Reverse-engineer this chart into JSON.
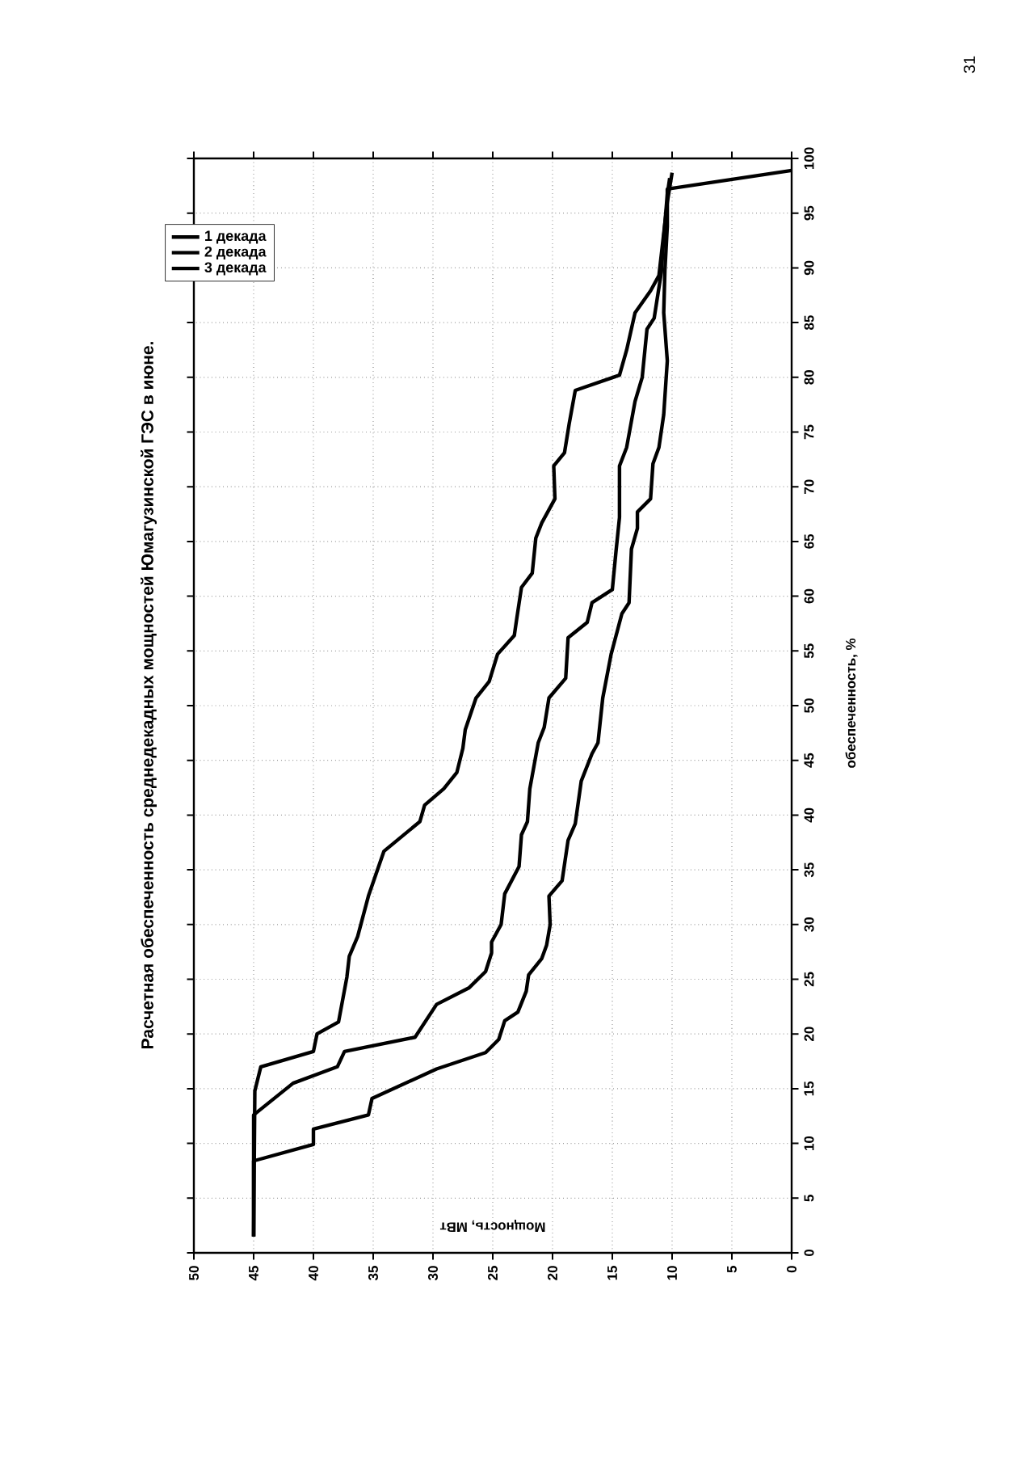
{
  "chart_data": {
    "type": "line",
    "title": "Расчетная обеспеченность среднедекадных мощностей Юмагузинской ГЭС в июне.",
    "xlabel": "Мощность, МВт",
    "ylabel": "обеспеченность, %",
    "annotations": [
      "31"
    ],
    "xlim": [
      50,
      0
    ],
    "ylim": [
      0,
      100
    ],
    "xticks": [
      0,
      5,
      10,
      15,
      20,
      25,
      30,
      35,
      40,
      45,
      50
    ],
    "yticks": [
      0,
      5,
      10,
      15,
      20,
      25,
      30,
      35,
      40,
      45,
      50,
      55,
      60,
      65,
      70,
      75,
      80,
      85,
      90,
      95,
      100
    ],
    "grid": true,
    "legend": "top left",
    "marker": "none",
    "line_style": "solid",
    "series": [
      {
        "name": "1 декада",
        "color": "#000000",
        "values": [
          1.5,
          14.8,
          17.0,
          18.4,
          20,
          21.1,
          25.2,
          27.1,
          28.9,
          32.6,
          36.7,
          39.4,
          40.9,
          42.4,
          43.9,
          46.1,
          47.8,
          50.7,
          52.2,
          54.7,
          56.4,
          57.9,
          60.8,
          62.1,
          65.3,
          66.7,
          68.9,
          71.9,
          73.1,
          75.8,
          78.8,
          80.2,
          82.5,
          85.9,
          87.9,
          89.3,
          96,
          98.7
        ],
        "x": [
          45,
          44.9,
          44.4,
          40,
          39.7,
          37.9,
          37.2,
          37,
          36.3,
          35.4,
          34.1,
          31.1,
          30.7,
          29.1,
          28,
          27.5,
          27.3,
          26.4,
          25.3,
          24.6,
          23.2,
          23,
          22.6,
          21.7,
          21.4,
          20.9,
          19.8,
          19.9,
          19,
          18.6,
          18.1,
          14.4,
          13.8,
          13.1,
          11.8,
          11.1,
          10.4,
          10
        ]
      },
      {
        "name": "2 декада",
        "color": "#000000",
        "values": [
          1.5,
          12.6,
          15.5,
          17,
          18.4,
          19.7,
          22.7,
          24.2,
          25.7,
          27.4,
          28.4,
          30,
          32.8,
          35.3,
          38.2,
          39.4,
          42.4,
          46.6,
          48,
          50.7,
          52.5,
          56.2,
          57.6,
          59.4,
          60.6,
          64,
          67.2,
          71.9,
          73.6,
          77.8,
          80,
          84.4,
          85.4,
          89.6,
          92.8,
          96.7,
          98.2
        ],
        "x": [
          45,
          45,
          41.7,
          38,
          37.4,
          31.5,
          29.7,
          27,
          25.6,
          25.1,
          25.1,
          24.3,
          24,
          22.8,
          22.6,
          22.1,
          21.9,
          21.2,
          20.7,
          20.3,
          18.9,
          18.7,
          17.1,
          16.7,
          15,
          14.7,
          14.4,
          14.4,
          13.8,
          13.1,
          12.5,
          12.1,
          11.5,
          10.9,
          10.7,
          10.4,
          10.2
        ]
      },
      {
        "name": "3 декада",
        "color": "#000000",
        "values": [
          1.5,
          8.4,
          9.9,
          11.3,
          12.6,
          14.1,
          16.8,
          18.3,
          19.5,
          21.2,
          22,
          23.9,
          25.4,
          26.9,
          28.1,
          30,
          32.6,
          34,
          37.7,
          39.2,
          43.1,
          45.6,
          46.6,
          50.7,
          54.7,
          58.4,
          59.4,
          64.3,
          66.2,
          67.7,
          68.9,
          72.1,
          73.6,
          76.6,
          81.5,
          85.9,
          89.8,
          93.8,
          97.2,
          98.9
        ],
        "x": [
          45,
          45,
          40,
          40,
          35.4,
          35.1,
          29.7,
          25.6,
          24.5,
          24,
          22.9,
          22.2,
          22,
          20.9,
          20.5,
          20.2,
          20.3,
          19.2,
          18.7,
          18.1,
          17.6,
          16.7,
          16.2,
          15.8,
          15.1,
          14.2,
          13.6,
          13.4,
          12.9,
          12.9,
          11.8,
          11.6,
          11.1,
          10.7,
          10.4,
          10.7,
          10.6,
          10.4,
          10.4,
          0
        ]
      }
    ]
  }
}
